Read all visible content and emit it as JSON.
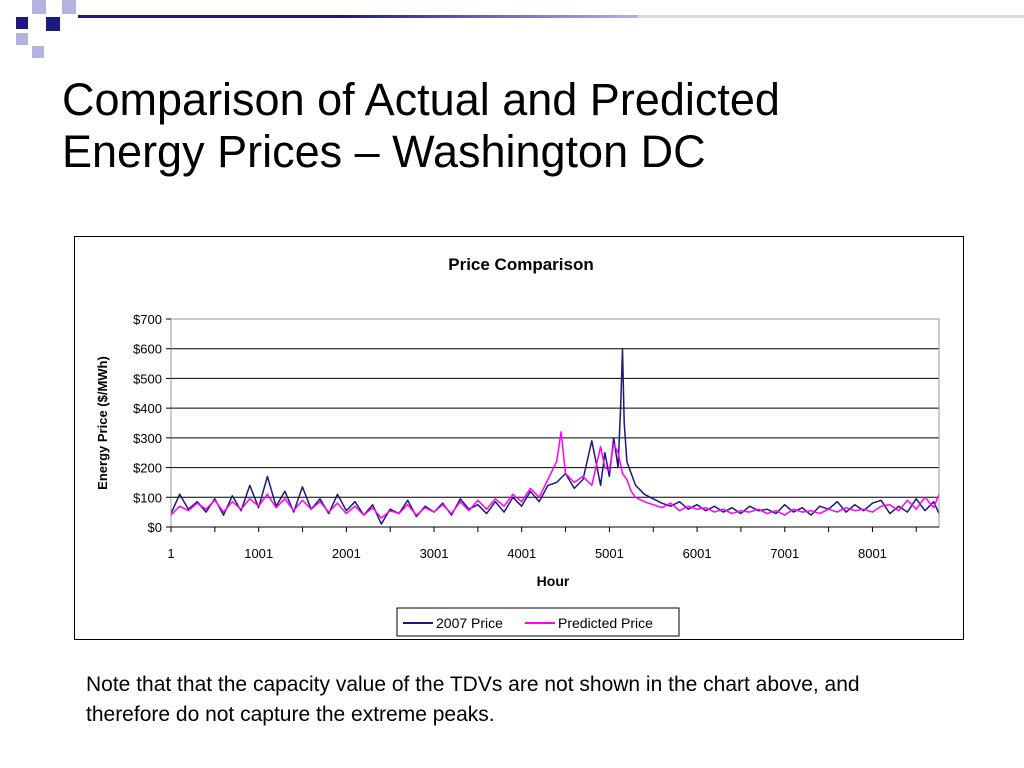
{
  "slide": {
    "title_line1": "Comparison of Actual and Predicted",
    "title_line2": "Energy Prices – Washington DC",
    "note": "Note that that the capacity value of the TDVs are not shown in the chart above, and therefore do not capture the extreme peaks."
  },
  "colors": {
    "logo_dark": "#1a1a80",
    "logo_light": "#b3b3e0",
    "actual_series": "#1a1a7a",
    "predicted_series": "#ff00ff",
    "gridline": "#000000"
  },
  "chart_data": {
    "type": "line",
    "title": "Price Comparison",
    "xlabel": "Hour",
    "ylabel": "Energy Price ($/MWh)",
    "xlim": [
      1,
      8760
    ],
    "ylim": [
      0,
      700
    ],
    "x_ticks": [
      "1",
      "1001",
      "2001",
      "3001",
      "4001",
      "5001",
      "6001",
      "7001",
      "8001"
    ],
    "y_ticks": [
      "$0",
      "$100",
      "$200",
      "$300",
      "$400",
      "$500",
      "$600",
      "$700"
    ],
    "grid": true,
    "legend_position": "bottom-center",
    "series": [
      {
        "name": "2007 Price",
        "color": "#1a1a7a",
        "x": [
          1,
          100,
          200,
          300,
          400,
          500,
          600,
          700,
          800,
          900,
          1000,
          1100,
          1200,
          1300,
          1400,
          1500,
          1600,
          1700,
          1800,
          1900,
          2000,
          2100,
          2200,
          2300,
          2400,
          2500,
          2600,
          2700,
          2800,
          2900,
          3000,
          3100,
          3200,
          3300,
          3400,
          3500,
          3600,
          3700,
          3800,
          3900,
          4000,
          4100,
          4200,
          4300,
          4400,
          4500,
          4600,
          4700,
          4800,
          4900,
          4950,
          5000,
          5050,
          5100,
          5130,
          5150,
          5170,
          5200,
          5250,
          5300,
          5400,
          5500,
          5600,
          5700,
          5800,
          5900,
          6000,
          6100,
          6200,
          6300,
          6400,
          6500,
          6600,
          6700,
          6800,
          6900,
          7000,
          7100,
          7200,
          7300,
          7400,
          7500,
          7600,
          7700,
          7800,
          7900,
          8000,
          8100,
          8200,
          8300,
          8400,
          8500,
          8600,
          8700,
          8760
        ],
        "y": [
          45,
          110,
          60,
          85,
          50,
          95,
          40,
          105,
          55,
          140,
          65,
          170,
          70,
          120,
          50,
          135,
          60,
          95,
          45,
          110,
          55,
          85,
          40,
          75,
          10,
          60,
          45,
          90,
          35,
          70,
          50,
          80,
          40,
          95,
          60,
          75,
          45,
          85,
          50,
          100,
          70,
          120,
          85,
          140,
          150,
          180,
          130,
          160,
          290,
          140,
          250,
          170,
          300,
          200,
          410,
          600,
          350,
          220,
          180,
          140,
          110,
          95,
          80,
          70,
          85,
          60,
          75,
          55,
          70,
          50,
          65,
          45,
          70,
          55,
          60,
          45,
          75,
          50,
          65,
          40,
          70,
          60,
          85,
          50,
          75,
          55,
          80,
          90,
          45,
          70,
          50,
          95,
          55,
          85,
          45
        ]
      },
      {
        "name": "Predicted Price",
        "color": "#ff00ff",
        "x": [
          1,
          100,
          200,
          300,
          400,
          500,
          600,
          700,
          800,
          900,
          1000,
          1100,
          1200,
          1300,
          1400,
          1500,
          1600,
          1700,
          1800,
          1900,
          2000,
          2100,
          2200,
          2300,
          2400,
          2500,
          2600,
          2700,
          2800,
          2900,
          3000,
          3100,
          3200,
          3300,
          3400,
          3500,
          3600,
          3700,
          3800,
          3900,
          4000,
          4100,
          4200,
          4300,
          4400,
          4450,
          4500,
          4600,
          4700,
          4800,
          4900,
          4950,
          5000,
          5050,
          5100,
          5150,
          5200,
          5250,
          5300,
          5400,
          5500,
          5600,
          5700,
          5800,
          5900,
          6000,
          6100,
          6200,
          6300,
          6400,
          6500,
          6600,
          6700,
          6800,
          6900,
          7000,
          7100,
          7200,
          7300,
          7400,
          7500,
          7600,
          7700,
          7800,
          7900,
          8000,
          8100,
          8200,
          8300,
          8400,
          8500,
          8600,
          8700,
          8760
        ],
        "y": [
          40,
          70,
          55,
          80,
          60,
          90,
          50,
          85,
          60,
          95,
          70,
          110,
          65,
          95,
          55,
          90,
          60,
          85,
          50,
          80,
          45,
          70,
          40,
          65,
          30,
          55,
          45,
          75,
          40,
          65,
          50,
          75,
          45,
          85,
          55,
          90,
          60,
          95,
          70,
          110,
          85,
          130,
          100,
          160,
          220,
          320,
          180,
          150,
          170,
          140,
          270,
          200,
          190,
          280,
          250,
          180,
          160,
          120,
          100,
          85,
          75,
          65,
          80,
          55,
          70,
          60,
          65,
          50,
          60,
          45,
          55,
          50,
          60,
          45,
          55,
          40,
          60,
          50,
          55,
          45,
          60,
          50,
          65,
          55,
          60,
          50,
          70,
          75,
          55,
          90,
          60,
          100,
          65,
          110
        ]
      }
    ]
  }
}
